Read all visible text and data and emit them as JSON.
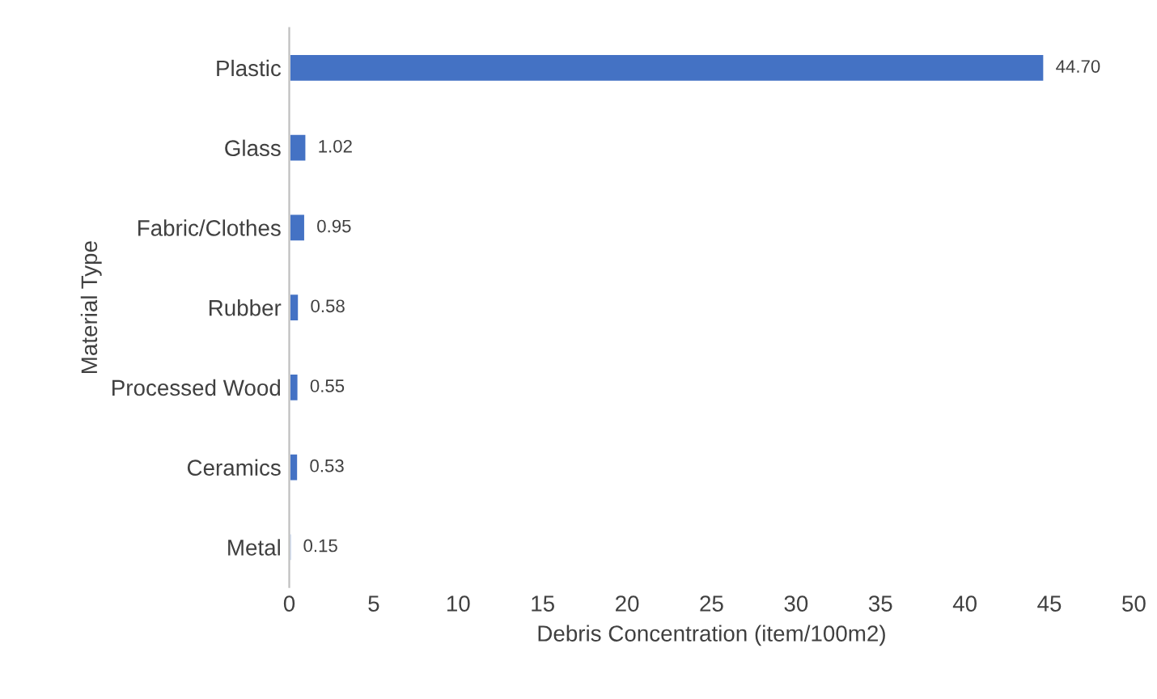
{
  "chart_data": {
    "type": "bar",
    "orientation": "horizontal",
    "xlabel": "Debris Concentration (item/100m2)",
    "ylabel": "Material Type",
    "categories": [
      "Plastic",
      "Glass",
      "Fabric/Clothes",
      "Rubber",
      "Processed Wood",
      "Ceramics",
      "Metal"
    ],
    "values": [
      44.7,
      1.02,
      0.95,
      0.58,
      0.55,
      0.53,
      0.15
    ],
    "value_labels": [
      "44.70",
      "1.02",
      "0.95",
      "0.58",
      "0.55",
      "0.53",
      "0.15"
    ],
    "color": "#4472c4",
    "xlim": [
      0,
      50
    ],
    "xticks": [
      0,
      5,
      10,
      15,
      20,
      25,
      30,
      35,
      40,
      45,
      50
    ],
    "grid": false,
    "legend": false
  }
}
